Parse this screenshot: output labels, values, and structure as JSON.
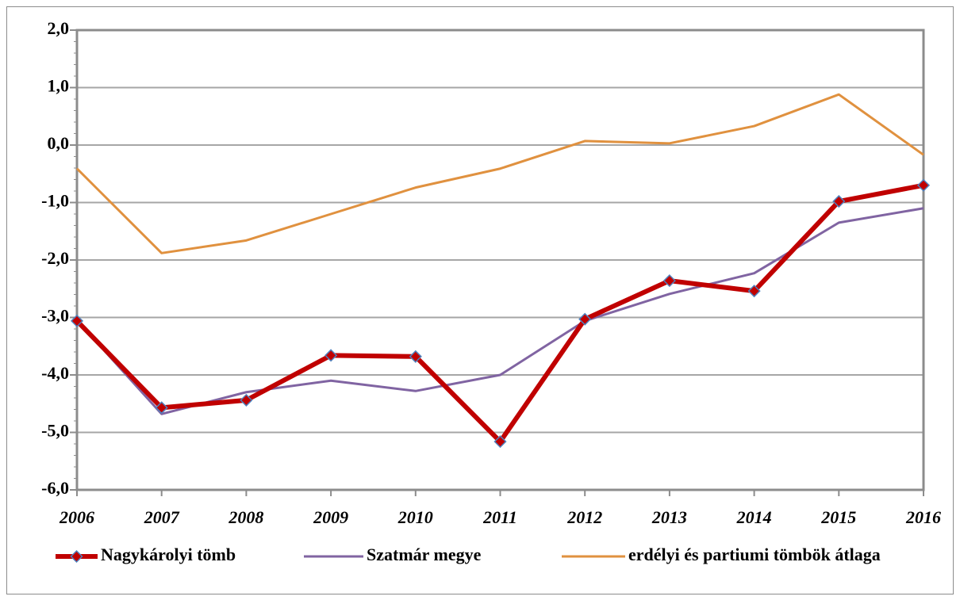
{
  "chart_data": {
    "type": "line",
    "categories": [
      "2006",
      "2007",
      "2008",
      "2009",
      "2010",
      "2011",
      "2012",
      "2013",
      "2014",
      "2015",
      "2016"
    ],
    "series": [
      {
        "name": "Nagykárolyi tömb",
        "color": "#c00000",
        "marker": "diamond",
        "values": [
          -3.06,
          -4.57,
          -4.44,
          -3.66,
          -3.68,
          -5.16,
          -3.03,
          -2.36,
          -2.54,
          -0.98,
          -0.7
        ]
      },
      {
        "name": "Szatmár megye",
        "color": "#8064a2",
        "values": [
          -3.05,
          -4.68,
          -4.3,
          -4.1,
          -4.28,
          -4.0,
          -3.06,
          -2.59,
          -2.23,
          -1.35,
          -1.1
        ]
      },
      {
        "name": "erdélyi és partiumi tömbök átlaga",
        "color": "#e0913f",
        "values": [
          -0.41,
          -1.88,
          -1.66,
          -1.2,
          -0.74,
          -0.41,
          0.07,
          0.03,
          0.33,
          0.88,
          -0.17
        ]
      }
    ],
    "ylim": [
      -6,
      2
    ],
    "yticks": [
      {
        "value": -6,
        "label": "-6,0"
      },
      {
        "value": -5,
        "label": "-5,0"
      },
      {
        "value": -4,
        "label": "-4,0"
      },
      {
        "value": -3,
        "label": "-3,0"
      },
      {
        "value": -2,
        "label": "-2,0"
      },
      {
        "value": -1,
        "label": "-1,0"
      },
      {
        "value": 0,
        "label": "0,0"
      },
      {
        "value": 1,
        "label": "1,0"
      },
      {
        "value": 2,
        "label": "2,0"
      }
    ],
    "grid": true,
    "legend": "bottom"
  }
}
